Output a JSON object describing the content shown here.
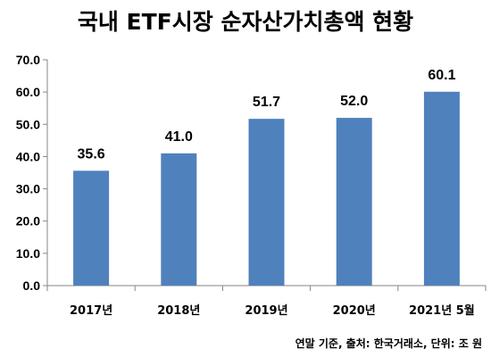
{
  "chart_data": {
    "type": "bar",
    "title": "국내 ETF시장 순자산가치총액 현황",
    "categories": [
      "2017년",
      "2018년",
      "2019년",
      "2020년",
      "2021년 5월"
    ],
    "values": [
      35.6,
      41.0,
      51.7,
      52.0,
      60.1
    ],
    "value_labels": [
      "35.6",
      "41.0",
      "51.7",
      "52.0",
      "60.1"
    ],
    "y_ticks": [
      "0.0",
      "10.0",
      "20.0",
      "30.0",
      "40.0",
      "50.0",
      "60.0",
      "70.0"
    ],
    "ylim": [
      0,
      70
    ],
    "grid": false,
    "bar_color": "#4f81bd",
    "source": "연말 기준, 출처: 한국거래소, 단위: 조 원"
  }
}
